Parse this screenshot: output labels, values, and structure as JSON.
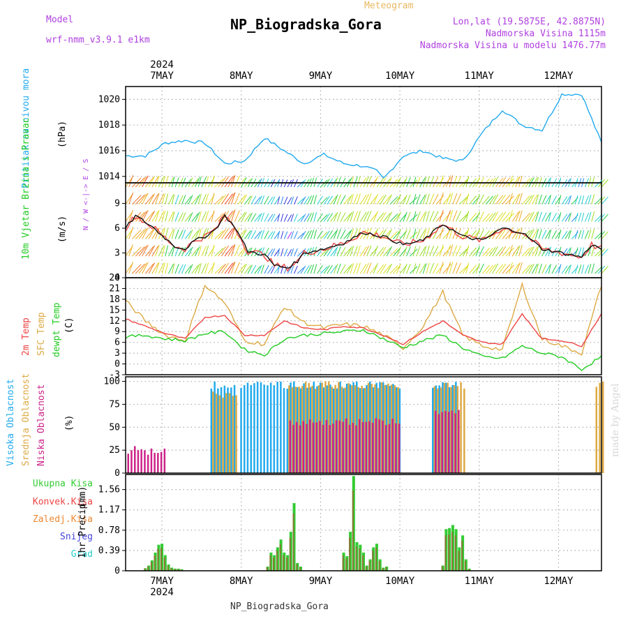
{
  "header": {
    "model_label": "Model",
    "model_value": "wrf-nmm_v3.9.1 e1km",
    "chart_type_label": "Meteogram",
    "location_title": "NP_Biogradska_Gora",
    "lonlat": "Lon,lat (19.5875E, 42.8875N)",
    "altitude": "Nadmorska Visina 1115m",
    "model_altitude": "Nadmorska Visina u modelu 1476.77m",
    "watermark": "made by Angel",
    "footer": "NP_Biogradska_Gora"
  },
  "colors": {
    "pressure": "#22aaee",
    "temp2m": "#ee4444",
    "sfc_temp": "#ddaa44",
    "dewpoint": "#22cc22",
    "high_cloud": "#22aaee",
    "mid_cloud": "#ddaa44",
    "low_cloud": "#cc2288",
    "total_precip": "#33cc33",
    "convective": "#ee4444",
    "frozen": "#ee8833",
    "snow": "#4444dd",
    "hail": "#22cccc",
    "purple": "#b040e0"
  },
  "chart_data": {
    "type": "meteogram",
    "time_axis": {
      "year": "2024",
      "day_labels": [
        "7MAY",
        "8MAY",
        "9MAY",
        "10MAY",
        "11MAY",
        "12MAY"
      ],
      "start": "2024-05-06 13:00",
      "end": "2024-05-12 13:00",
      "step_hours": 1
    },
    "pressure": {
      "ylabel": "Pritisak na nivou mora",
      "unit": "(hPa)",
      "ylim": [
        1013.5,
        1021
      ],
      "ticks": [
        1014,
        1016,
        1018,
        1020
      ],
      "keypoints": [
        [
          "2024-05-06 13:00",
          1015.6
        ],
        [
          "2024-05-06 19:00",
          1015.6
        ],
        [
          "2024-05-07 01:00",
          1016.6
        ],
        [
          "2024-05-07 07:00",
          1016.8
        ],
        [
          "2024-05-07 13:00",
          1016.6
        ],
        [
          "2024-05-07 19:00",
          1015.0
        ],
        [
          "2024-05-08 01:00",
          1015.2
        ],
        [
          "2024-05-08 07:00",
          1017.0
        ],
        [
          "2024-05-08 13:00",
          1016.0
        ],
        [
          "2024-05-08 19:00",
          1015.0
        ],
        [
          "2024-05-09 01:00",
          1015.7
        ],
        [
          "2024-05-09 07:00",
          1015.0
        ],
        [
          "2024-05-09 13:00",
          1014.8
        ],
        [
          "2024-05-09 17:00",
          1014.4
        ],
        [
          "2024-05-09 19:00",
          1013.8
        ],
        [
          "2024-05-10 01:00",
          1015.6
        ],
        [
          "2024-05-10 07:00",
          1016.0
        ],
        [
          "2024-05-10 13:00",
          1015.4
        ],
        [
          "2024-05-10 19:00",
          1015.2
        ],
        [
          "2024-05-11 01:00",
          1017.4
        ],
        [
          "2024-05-11 07:00",
          1019.2
        ],
        [
          "2024-05-11 13:00",
          1018.0
        ],
        [
          "2024-05-11 19:00",
          1017.6
        ],
        [
          "2024-05-12 01:00",
          1020.4
        ],
        [
          "2024-05-12 07:00",
          1020.4
        ],
        [
          "2024-05-12 13:00",
          1016.6
        ]
      ]
    },
    "wind": {
      "ylabel": "10m Vjetar Brzina i Pravac",
      "unit": "(m/s)",
      "ylim": [
        0,
        11.5
      ],
      "ticks": [
        0,
        3,
        6,
        9
      ],
      "compass": "N / W <-|-> E / S",
      "speed_keypoints": [
        [
          "2024-05-06 13:00",
          6.0
        ],
        [
          "2024-05-06 16:00",
          7.5
        ],
        [
          "2024-05-06 21:00",
          6.2
        ],
        [
          "2024-05-07 01:00",
          4.8
        ],
        [
          "2024-05-07 04:00",
          3.8
        ],
        [
          "2024-05-07 07:00",
          3.5
        ],
        [
          "2024-05-07 10:00",
          4.5
        ],
        [
          "2024-05-07 13:00",
          5.0
        ],
        [
          "2024-05-07 16:00",
          5.8
        ],
        [
          "2024-05-07 19:00",
          7.5
        ],
        [
          "2024-05-07 22:00",
          6.2
        ],
        [
          "2024-05-08 02:00",
          3.2
        ],
        [
          "2024-05-08 07:00",
          2.8
        ],
        [
          "2024-05-08 10:00",
          1.5
        ],
        [
          "2024-05-08 14:00",
          1.2
        ],
        [
          "2024-05-08 17:00",
          2.0
        ],
        [
          "2024-05-08 19:00",
          3.0
        ],
        [
          "2024-05-09 01:00",
          3.5
        ],
        [
          "2024-05-09 07:00",
          4.2
        ],
        [
          "2024-05-09 13:00",
          5.5
        ],
        [
          "2024-05-09 19:00",
          5.0
        ],
        [
          "2024-05-10 01:00",
          4.0
        ],
        [
          "2024-05-10 07:00",
          4.5
        ],
        [
          "2024-05-10 13:00",
          6.5
        ],
        [
          "2024-05-10 19:00",
          5.0
        ],
        [
          "2024-05-11 01:00",
          4.5
        ],
        [
          "2024-05-11 07:00",
          6.0
        ],
        [
          "2024-05-11 13:00",
          5.5
        ],
        [
          "2024-05-11 19:00",
          3.5
        ],
        [
          "2024-05-12 01:00",
          3.0
        ],
        [
          "2024-05-12 07:00",
          2.5
        ],
        [
          "2024-05-12 10:00",
          4.0
        ],
        [
          "2024-05-12 13:00",
          3.5
        ]
      ]
    },
    "temperature": {
      "legend": [
        "2m Temp",
        "SFC Temp",
        "dewpt Temp"
      ],
      "unit": "(C)",
      "ylim": [
        -3,
        24
      ],
      "ticks": [
        -3,
        0,
        3,
        6,
        9,
        12,
        15,
        18,
        21,
        24
      ],
      "t2m": [
        [
          "2024-05-06 13:00",
          12.5
        ],
        [
          "2024-05-06 19:00",
          10.5
        ],
        [
          "2024-05-07 01:00",
          8.5
        ],
        [
          "2024-05-07 07:00",
          7.0
        ],
        [
          "2024-05-07 13:00",
          13.0
        ],
        [
          "2024-05-07 19:00",
          13.5
        ],
        [
          "2024-05-08 01:00",
          8.0
        ],
        [
          "2024-05-08 07:00",
          8.0
        ],
        [
          "2024-05-08 13:00",
          12.0
        ],
        [
          "2024-05-08 19:00",
          10.0
        ],
        [
          "2024-05-09 01:00",
          9.5
        ],
        [
          "2024-05-09 07:00",
          10.5
        ],
        [
          "2024-05-09 13:00",
          10.0
        ],
        [
          "2024-05-09 19:00",
          8.0
        ],
        [
          "2024-05-10 01:00",
          5.5
        ],
        [
          "2024-05-10 07:00",
          9.0
        ],
        [
          "2024-05-10 13:00",
          12.0
        ],
        [
          "2024-05-10 19:00",
          8.0
        ],
        [
          "2024-05-11 01:00",
          6.0
        ],
        [
          "2024-05-11 07:00",
          5.5
        ],
        [
          "2024-05-11 13:00",
          14.0
        ],
        [
          "2024-05-11 19:00",
          7.0
        ],
        [
          "2024-05-12 01:00",
          6.5
        ],
        [
          "2024-05-12 07:00",
          5.0
        ],
        [
          "2024-05-12 13:00",
          14.0
        ]
      ],
      "sfc": [
        [
          "2024-05-06 13:00",
          17.5
        ],
        [
          "2024-05-06 19:00",
          12.0
        ],
        [
          "2024-05-07 01:00",
          8.0
        ],
        [
          "2024-05-07 07:00",
          6.5
        ],
        [
          "2024-05-07 13:00",
          22.0
        ],
        [
          "2024-05-07 19:00",
          17.0
        ],
        [
          "2024-05-08 01:00",
          6.5
        ],
        [
          "2024-05-08 07:00",
          5.5
        ],
        [
          "2024-05-08 13:00",
          16.0
        ],
        [
          "2024-05-08 19:00",
          11.5
        ],
        [
          "2024-05-09 01:00",
          10.0
        ],
        [
          "2024-05-09 07:00",
          11.0
        ],
        [
          "2024-05-09 13:00",
          10.5
        ],
        [
          "2024-05-09 19:00",
          8.0
        ],
        [
          "2024-05-10 01:00",
          4.5
        ],
        [
          "2024-05-10 07:00",
          10.5
        ],
        [
          "2024-05-10 13:00",
          20.0
        ],
        [
          "2024-05-10 19:00",
          8.0
        ],
        [
          "2024-05-11 01:00",
          5.0
        ],
        [
          "2024-05-11 07:00",
          4.0
        ],
        [
          "2024-05-11 13:00",
          22.0
        ],
        [
          "2024-05-11 19:00",
          7.0
        ],
        [
          "2024-05-12 01:00",
          5.0
        ],
        [
          "2024-05-12 07:00",
          3.0
        ],
        [
          "2024-05-12 13:00",
          22.0
        ]
      ],
      "dew": [
        [
          "2024-05-06 13:00",
          7.5
        ],
        [
          "2024-05-06 19:00",
          8.0
        ],
        [
          "2024-05-07 01:00",
          7.0
        ],
        [
          "2024-05-07 07:00",
          6.5
        ],
        [
          "2024-05-07 13:00",
          8.5
        ],
        [
          "2024-05-07 19:00",
          9.0
        ],
        [
          "2024-05-08 01:00",
          4.0
        ],
        [
          "2024-05-08 07:00",
          2.5
        ],
        [
          "2024-05-08 13:00",
          7.0
        ],
        [
          "2024-05-08 19:00",
          8.0
        ],
        [
          "2024-05-09 01:00",
          8.5
        ],
        [
          "2024-05-09 07:00",
          9.0
        ],
        [
          "2024-05-09 13:00",
          9.5
        ],
        [
          "2024-05-09 19:00",
          7.0
        ],
        [
          "2024-05-10 01:00",
          4.5
        ],
        [
          "2024-05-10 07:00",
          6.5
        ],
        [
          "2024-05-10 13:00",
          8.0
        ],
        [
          "2024-05-10 19:00",
          4.5
        ],
        [
          "2024-05-11 01:00",
          2.0
        ],
        [
          "2024-05-11 07:00",
          1.5
        ],
        [
          "2024-05-11 13:00",
          5.0
        ],
        [
          "2024-05-11 19:00",
          3.0
        ],
        [
          "2024-05-12 01:00",
          2.0
        ],
        [
          "2024-05-12 07:00",
          -1.5
        ],
        [
          "2024-05-12 13:00",
          2.0
        ]
      ]
    },
    "clouds": {
      "legend": [
        "Visoka Oblacnost",
        "Srednja Oblacnost",
        "Niska Oblacnost"
      ],
      "unit": "(%)",
      "ylim": [
        0,
        105
      ],
      "ticks": [
        0,
        25,
        50,
        75,
        100
      ],
      "high_segments": [
        [
          "2024-05-07 15:00",
          "2024-05-07 22:00",
          100
        ],
        [
          "2024-05-08 00:00",
          "2024-05-08 12:00",
          100
        ],
        [
          "2024-05-08 13:00",
          "2024-05-10 00:00",
          100
        ],
        [
          "2024-05-10 10:00",
          "2024-05-10 17:00",
          100
        ]
      ],
      "mid_segments": [
        [
          "2024-05-07 15:00",
          "2024-05-07 22:00",
          90
        ],
        [
          "2024-05-08 14:00",
          "2024-05-09 23:00",
          100
        ],
        [
          "2024-05-10 10:00",
          "2024-05-10 19:00",
          100
        ],
        [
          "2024-05-12 11:00",
          "2024-05-12 13:00",
          100
        ]
      ],
      "low_segments": [
        [
          "2024-05-06 13:00",
          "2024-05-07 00:00",
          30
        ],
        [
          "2024-05-08 14:00",
          "2024-05-09 23:00",
          60
        ],
        [
          "2024-05-10 10:00",
          "2024-05-10 17:00",
          70
        ]
      ]
    },
    "precip": {
      "legend": [
        "Ukupna Kisa",
        "Konvek.Kisa",
        "Zaledj.Kisa",
        "Snijeg",
        "Grad"
      ],
      "ylabel": "1hr Precip",
      "unit": "(mm)",
      "ylim": [
        0,
        1.85
      ],
      "ticks": [
        0,
        0.39,
        0.78,
        1.17,
        1.56
      ],
      "bars": [
        [
          "2024-05-06 19:00",
          0.05
        ],
        [
          "2024-05-06 20:00",
          0.1
        ],
        [
          "2024-05-06 21:00",
          0.2
        ],
        [
          "2024-05-06 22:00",
          0.35
        ],
        [
          "2024-05-06 23:00",
          0.5
        ],
        [
          "2024-05-07 00:00",
          0.52
        ],
        [
          "2024-05-07 01:00",
          0.3
        ],
        [
          "2024-05-07 02:00",
          0.12
        ],
        [
          "2024-05-07 03:00",
          0.06
        ],
        [
          "2024-05-07 04:00",
          0.04
        ],
        [
          "2024-05-07 05:00",
          0.04
        ],
        [
          "2024-05-07 06:00",
          0.03
        ],
        [
          "2024-05-08 08:00",
          0.08
        ],
        [
          "2024-05-08 09:00",
          0.35
        ],
        [
          "2024-05-08 10:00",
          0.3
        ],
        [
          "2024-05-08 11:00",
          0.45
        ],
        [
          "2024-05-08 12:00",
          0.6
        ],
        [
          "2024-05-08 13:00",
          0.35
        ],
        [
          "2024-05-08 14:00",
          0.3
        ],
        [
          "2024-05-08 15:00",
          0.75
        ],
        [
          "2024-05-08 16:00",
          1.3
        ],
        [
          "2024-05-08 17:00",
          0.15
        ],
        [
          "2024-05-08 18:00",
          0.08
        ],
        [
          "2024-05-09 07:00",
          0.35
        ],
        [
          "2024-05-09 08:00",
          0.28
        ],
        [
          "2024-05-09 09:00",
          0.75
        ],
        [
          "2024-05-09 10:00",
          1.82
        ],
        [
          "2024-05-09 11:00",
          0.55
        ],
        [
          "2024-05-09 12:00",
          0.5
        ],
        [
          "2024-05-09 13:00",
          0.35
        ],
        [
          "2024-05-09 14:00",
          0.1
        ],
        [
          "2024-05-09 15:00",
          0.22
        ],
        [
          "2024-05-09 16:00",
          0.45
        ],
        [
          "2024-05-09 17:00",
          0.52
        ],
        [
          "2024-05-09 18:00",
          0.22
        ],
        [
          "2024-05-09 19:00",
          0.06
        ],
        [
          "2024-05-09 20:00",
          0.08
        ],
        [
          "2024-05-10 13:00",
          0.1
        ],
        [
          "2024-05-10 14:00",
          0.8
        ],
        [
          "2024-05-10 15:00",
          0.82
        ],
        [
          "2024-05-10 16:00",
          0.88
        ],
        [
          "2024-05-10 17:00",
          0.8
        ],
        [
          "2024-05-10 18:00",
          0.45
        ],
        [
          "2024-05-10 19:00",
          0.68
        ],
        [
          "2024-05-10 20:00",
          0.22
        ],
        [
          "2024-05-10 21:00",
          0.04
        ]
      ]
    }
  }
}
